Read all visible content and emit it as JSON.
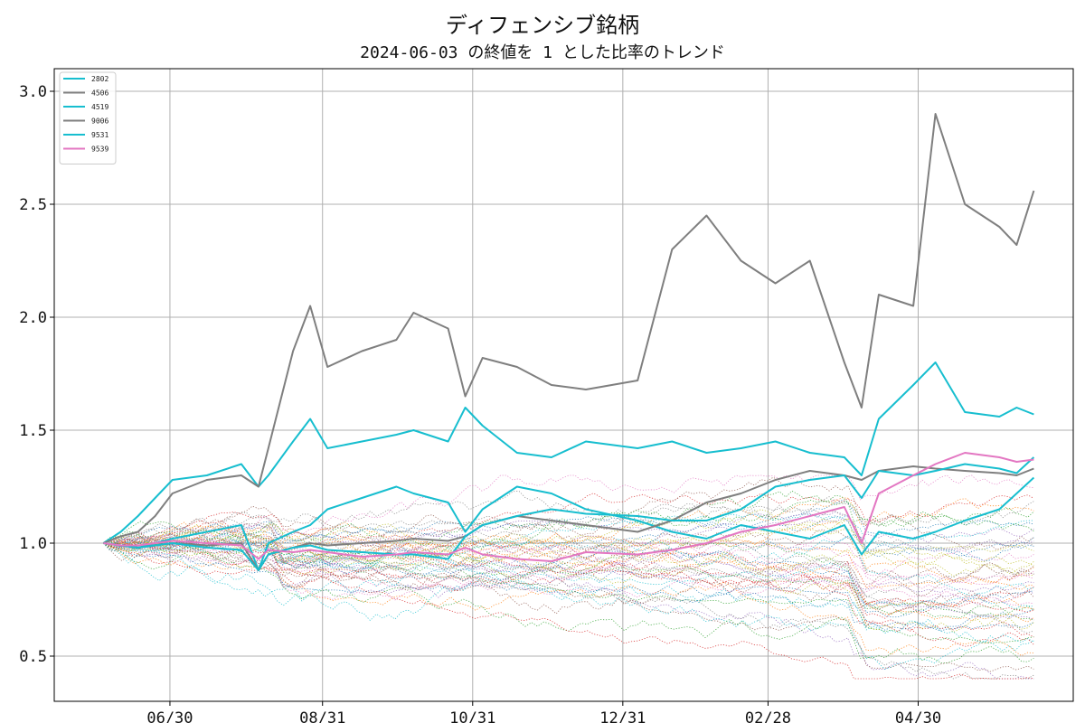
{
  "chart_data": {
    "type": "line",
    "title": "ディフェンシブ銘柄",
    "subtitle": "2024-06-03 の終値を 1 とした比率のトレンド",
    "xlabel": "",
    "ylabel": "",
    "x_ticks": [
      "06/30",
      "08/31",
      "10/31",
      "12/31",
      "02/28",
      "04/30"
    ],
    "y_ticks": [
      "0.5",
      "1.0",
      "1.5",
      "2.0",
      "2.5",
      "3.0"
    ],
    "ylim": [
      0.3,
      3.1
    ],
    "grid": true,
    "legend_position": "top-left",
    "x": [
      "2024-06-03",
      "2024-06-10",
      "2024-06-17",
      "2024-06-24",
      "2024-07-01",
      "2024-07-15",
      "2024-07-29",
      "2024-08-05",
      "2024-08-09",
      "2024-08-19",
      "2024-08-26",
      "2024-09-02",
      "2024-09-16",
      "2024-09-30",
      "2024-10-07",
      "2024-10-21",
      "2024-10-28",
      "2024-11-04",
      "2024-11-18",
      "2024-12-02",
      "2024-12-16",
      "2025-01-06",
      "2025-01-20",
      "2025-02-03",
      "2025-02-17",
      "2025-03-03",
      "2025-03-17",
      "2025-03-31",
      "2025-04-07",
      "2025-04-14",
      "2025-04-28",
      "2025-05-07",
      "2025-05-19",
      "2025-06-02",
      "2025-06-09",
      "2025-06-16"
    ],
    "series": [
      {
        "name": "2802",
        "color": "#17becf",
        "values": [
          1.0,
          1.05,
          1.12,
          1.2,
          1.28,
          1.3,
          1.35,
          1.25,
          1.3,
          1.45,
          1.55,
          1.42,
          1.45,
          1.48,
          1.5,
          1.45,
          1.6,
          1.52,
          1.4,
          1.38,
          1.45,
          1.42,
          1.45,
          1.4,
          1.42,
          1.45,
          1.4,
          1.38,
          1.3,
          1.55,
          1.7,
          1.8,
          1.58,
          1.56,
          1.6,
          1.57
        ]
      },
      {
        "name": "4506",
        "color": "#7f7f7f",
        "values": [
          1.0,
          1.03,
          1.05,
          1.12,
          1.22,
          1.28,
          1.3,
          1.25,
          1.42,
          1.85,
          2.05,
          1.78,
          1.85,
          1.9,
          2.02,
          1.95,
          1.65,
          1.82,
          1.78,
          1.7,
          1.68,
          1.72,
          2.3,
          2.45,
          2.25,
          2.15,
          2.25,
          1.8,
          1.6,
          2.1,
          2.05,
          2.9,
          2.5,
          2.4,
          2.32,
          2.56
        ]
      },
      {
        "name": "4519",
        "color": "#17becf",
        "values": [
          1.0,
          0.99,
          0.98,
          1.0,
          1.02,
          1.05,
          1.08,
          0.88,
          1.0,
          1.05,
          1.08,
          1.15,
          1.2,
          1.25,
          1.22,
          1.18,
          1.05,
          1.15,
          1.25,
          1.22,
          1.15,
          1.1,
          1.05,
          1.02,
          1.08,
          1.05,
          1.02,
          1.08,
          0.95,
          1.05,
          1.02,
          1.05,
          1.1,
          1.15,
          1.22,
          1.29
        ]
      },
      {
        "name": "9006",
        "color": "#7f7f7f",
        "values": [
          1.0,
          0.99,
          0.98,
          0.99,
          1.0,
          0.99,
          1.0,
          0.88,
          0.95,
          0.98,
          1.0,
          0.99,
          1.0,
          1.01,
          1.02,
          1.01,
          1.03,
          1.08,
          1.12,
          1.1,
          1.08,
          1.05,
          1.1,
          1.18,
          1.22,
          1.28,
          1.32,
          1.3,
          1.28,
          1.32,
          1.34,
          1.33,
          1.32,
          1.31,
          1.3,
          1.33
        ]
      },
      {
        "name": "9531",
        "color": "#17becf",
        "values": [
          1.0,
          0.99,
          0.98,
          0.99,
          1.0,
          0.98,
          0.97,
          0.88,
          0.95,
          0.98,
          0.99,
          0.97,
          0.96,
          0.95,
          0.95,
          0.93,
          1.03,
          1.08,
          1.12,
          1.15,
          1.13,
          1.12,
          1.1,
          1.1,
          1.15,
          1.25,
          1.28,
          1.3,
          1.2,
          1.32,
          1.3,
          1.32,
          1.35,
          1.33,
          1.31,
          1.38
        ]
      },
      {
        "name": "9539",
        "color": "#e377c2",
        "values": [
          1.0,
          0.99,
          0.99,
          1.0,
          1.01,
          1.0,
          0.99,
          0.93,
          0.97,
          0.96,
          0.97,
          0.96,
          0.94,
          0.95,
          0.96,
          0.95,
          0.98,
          0.95,
          0.93,
          0.92,
          0.96,
          0.95,
          0.97,
          1.0,
          1.05,
          1.08,
          1.12,
          1.16,
          1.0,
          1.22,
          1.3,
          1.35,
          1.4,
          1.38,
          1.36,
          1.37
        ]
      }
    ]
  }
}
